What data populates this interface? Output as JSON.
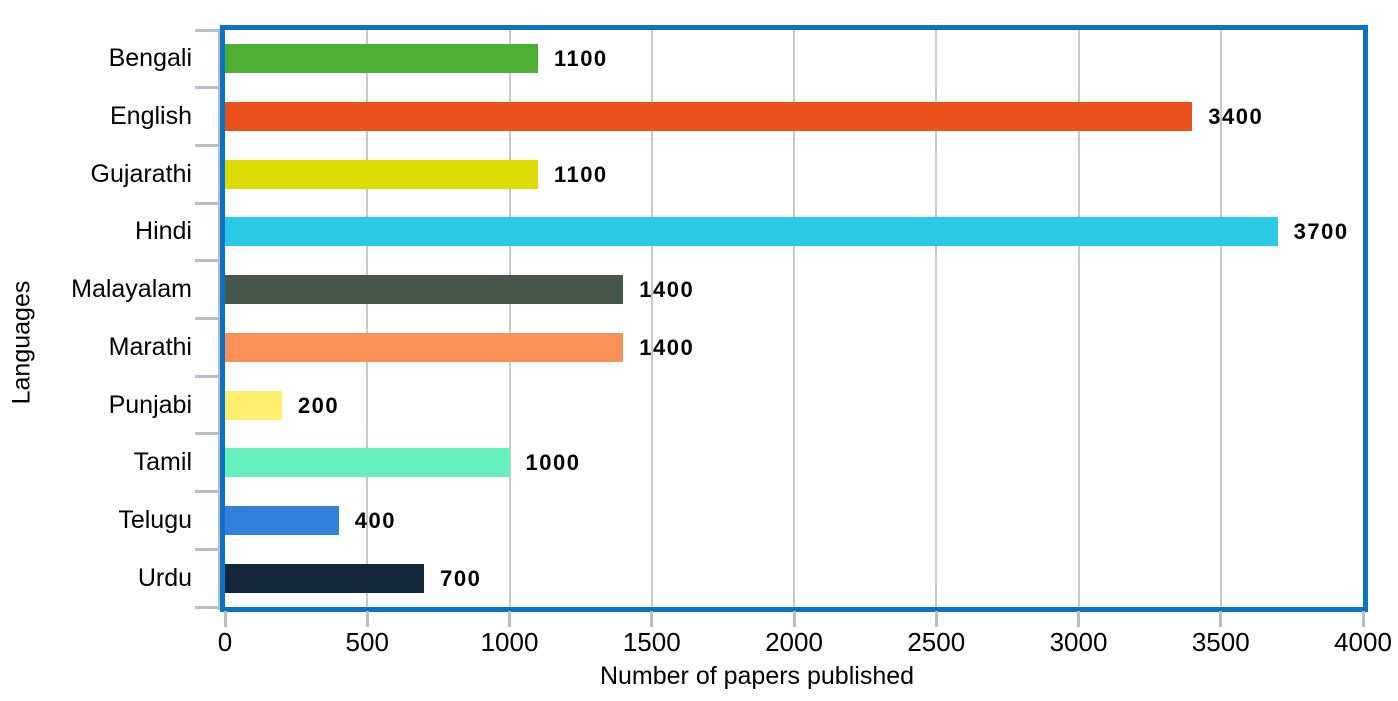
{
  "chart_data": {
    "type": "bar",
    "orientation": "horizontal",
    "title": "",
    "xlabel": "Number of papers published",
    "ylabel": "Languages",
    "categories": [
      "Bengali",
      "English",
      "Gujarathi",
      "Hindi",
      "Malayalam",
      "Marathi",
      "Punjabi",
      "Tamil",
      "Telugu",
      "Urdu"
    ],
    "values": [
      1100,
      3400,
      1100,
      3700,
      1400,
      1400,
      200,
      1000,
      400,
      700
    ],
    "value_labels": [
      "1100",
      "3400",
      "1100",
      "3700",
      "1400",
      "1400",
      "200",
      "1000",
      "400",
      "700"
    ],
    "bar_colors": [
      "#4cae32",
      "#e9531b",
      "#dcdc04",
      "#2bc9e6",
      "#46584c",
      "#fc9157",
      "#fef06e",
      "#66f0be",
      "#3080dc",
      "#13263a"
    ],
    "x_ticks": [
      0,
      500,
      1000,
      1500,
      2000,
      2500,
      3000,
      3500,
      4000
    ],
    "xlim": [
      0,
      4000
    ],
    "grid": true,
    "legend": "none",
    "colors": {
      "plot_border": "#0c72c6",
      "gridline": "#c7c9cb",
      "axis_tick": "#b4bfca",
      "label_text": "#000000",
      "background": "#ffffff"
    }
  }
}
